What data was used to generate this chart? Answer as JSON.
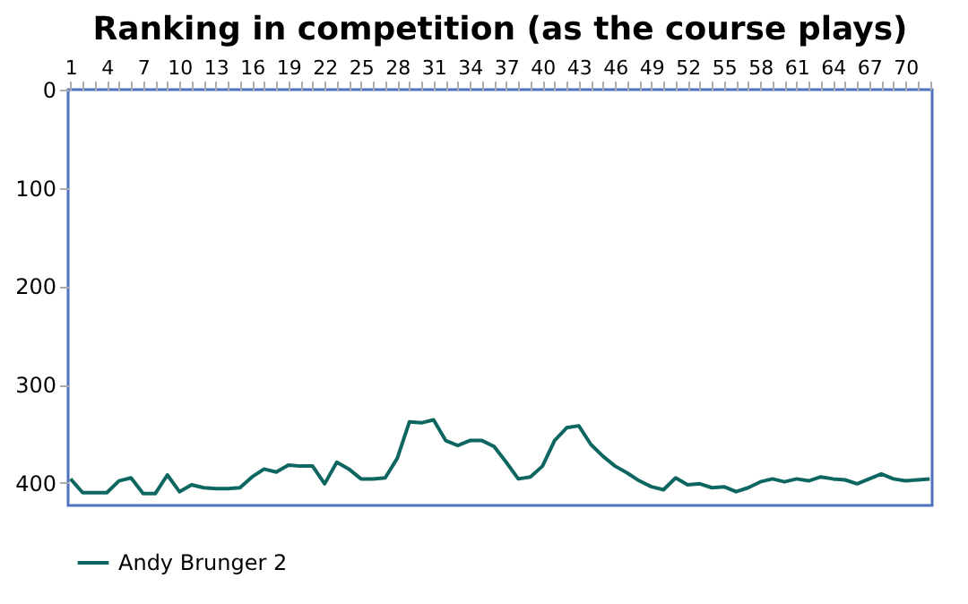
{
  "chart_data": {
    "type": "line",
    "title": "Ranking in competition (as the course plays)",
    "categories": [
      "1",
      null,
      null,
      "4",
      null,
      null,
      "7",
      null,
      null,
      "10",
      null,
      null,
      "13",
      null,
      null,
      "16",
      null,
      null,
      "19",
      null,
      null,
      "22",
      null,
      null,
      "25",
      null,
      null,
      "28",
      null,
      null,
      "31",
      null,
      null,
      "34",
      null,
      null,
      "37",
      null,
      null,
      "40",
      null,
      null,
      "43",
      null,
      null,
      "46",
      null,
      null,
      "49",
      null,
      null,
      "52",
      null,
      null,
      "55",
      null,
      null,
      "58",
      null,
      null,
      "61",
      null,
      null,
      "64",
      null,
      null,
      "67",
      null,
      null,
      "70",
      null,
      null
    ],
    "series": [
      {
        "name": "Andy Brunger 2",
        "color": "#0e6660",
        "values": [
          396,
          410,
          410,
          410,
          398,
          395,
          411,
          411,
          392,
          409,
          402,
          405,
          406,
          406,
          405,
          394,
          386,
          389,
          382,
          383,
          383,
          401,
          379,
          386,
          396,
          396,
          395,
          375,
          338,
          339,
          336,
          357,
          362,
          357,
          357,
          363,
          379,
          396,
          394,
          383,
          357,
          344,
          342,
          361,
          373,
          383,
          390,
          398,
          404,
          407,
          395,
          402,
          401,
          405,
          404,
          409,
          405,
          399,
          396,
          399,
          396,
          398,
          394,
          396,
          397,
          401,
          396,
          391,
          396,
          398,
          397,
          396
        ]
      }
    ],
    "ylim": [
      423,
      0
    ],
    "yticks": [
      0,
      100,
      200,
      300,
      400
    ],
    "legend": "bottom",
    "line_style": "solid",
    "marker": "none"
  }
}
